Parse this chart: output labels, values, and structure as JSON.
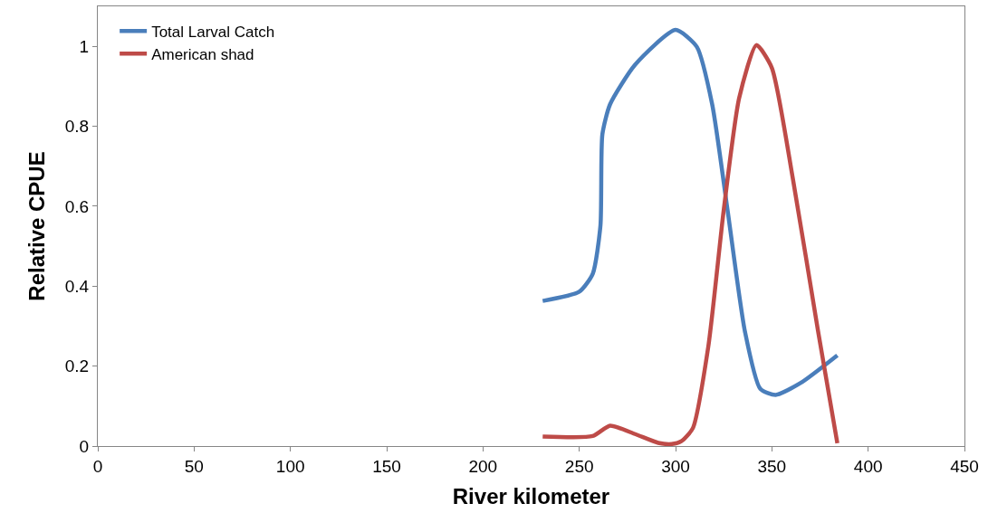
{
  "chart_data": {
    "type": "line",
    "xlabel": "River kilometer",
    "ylabel": "Relative CPUE",
    "xlim": [
      0,
      450
    ],
    "xticks": [
      0,
      50,
      100,
      150,
      200,
      250,
      300,
      350,
      400,
      450
    ],
    "ylim": [
      0,
      1.1
    ],
    "yticks": [
      0,
      0.2,
      0.4,
      0.6,
      0.8,
      1
    ],
    "legend": "top left",
    "marker": "none",
    "line_style": "solid",
    "series": [
      {
        "name": "Total Larval Catch",
        "color": "#4a7ebb",
        "x": [
          231,
          250,
          257,
          261,
          262,
          266,
          279,
          300,
          311,
          319,
          327,
          336,
          344,
          352,
          365,
          384
        ],
        "values": [
          0.363,
          0.386,
          0.431,
          0.552,
          0.78,
          0.855,
          0.954,
          1.041,
          0.999,
          0.855,
          0.59,
          0.287,
          0.143,
          0.128,
          0.158,
          0.227
        ]
      },
      {
        "name": "American shad",
        "color": "#be4b48",
        "x": [
          231,
          257,
          266,
          279,
          291,
          298,
          303,
          309,
          317,
          325,
          333,
          342,
          350,
          361,
          374,
          384
        ],
        "values": [
          0.024,
          0.025,
          0.051,
          0.03,
          0.008,
          0.005,
          0.012,
          0.045,
          0.249,
          0.59,
          0.87,
          1.003,
          0.946,
          0.666,
          0.287,
          0.007
        ]
      }
    ]
  }
}
